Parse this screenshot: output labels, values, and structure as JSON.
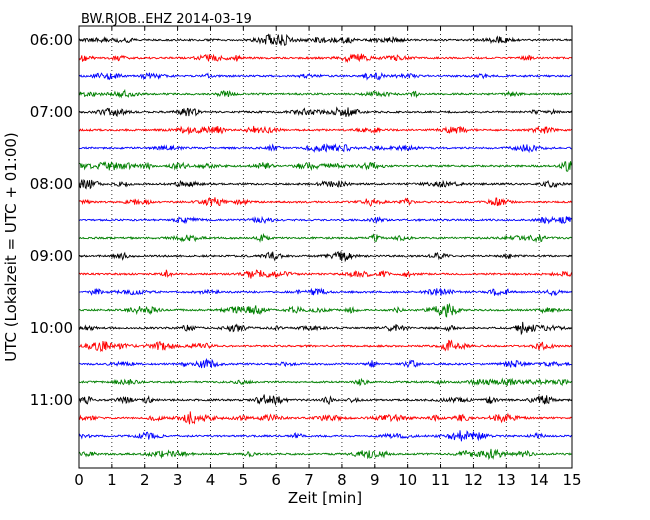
{
  "chart_data": {
    "type": "line",
    "title": "BW.RJOB..EHZ 2014-03-19",
    "xlabel": "Zeit  [min]",
    "ylabel": "UTC (Lokalzeit = UTC + 01:00)",
    "xlim": [
      0,
      15
    ],
    "x_ticks": [
      "0",
      "1",
      "2",
      "3",
      "4",
      "5",
      "6",
      "7",
      "8",
      "9",
      "10",
      "11",
      "12",
      "13",
      "14",
      "15"
    ],
    "y_ticks": [
      "06:00",
      "07:00",
      "08:00",
      "09:00",
      "10:00",
      "11:00"
    ],
    "grid": "vertical dotted at each minute",
    "trace_minutes": 15,
    "traces_per_hour": 4,
    "series": [
      {
        "start": "06:00",
        "color": "#000000"
      },
      {
        "start": "06:15",
        "color": "#ff0000"
      },
      {
        "start": "06:30",
        "color": "#0000ff"
      },
      {
        "start": "06:45",
        "color": "#008000"
      },
      {
        "start": "07:00",
        "color": "#000000"
      },
      {
        "start": "07:15",
        "color": "#ff0000"
      },
      {
        "start": "07:30",
        "color": "#0000ff"
      },
      {
        "start": "07:45",
        "color": "#008000"
      },
      {
        "start": "08:00",
        "color": "#000000"
      },
      {
        "start": "08:15",
        "color": "#ff0000"
      },
      {
        "start": "08:30",
        "color": "#0000ff"
      },
      {
        "start": "08:45",
        "color": "#008000"
      },
      {
        "start": "09:00",
        "color": "#000000"
      },
      {
        "start": "09:15",
        "color": "#ff0000"
      },
      {
        "start": "09:30",
        "color": "#0000ff"
      },
      {
        "start": "09:45",
        "color": "#008000"
      },
      {
        "start": "10:00",
        "color": "#000000"
      },
      {
        "start": "10:15",
        "color": "#ff0000"
      },
      {
        "start": "10:30",
        "color": "#0000ff"
      },
      {
        "start": "10:45",
        "color": "#008000"
      },
      {
        "start": "11:00",
        "color": "#000000"
      },
      {
        "start": "11:15",
        "color": "#ff0000"
      },
      {
        "start": "11:30",
        "color": "#0000ff"
      },
      {
        "start": "11:45",
        "color": "#008000"
      }
    ]
  }
}
